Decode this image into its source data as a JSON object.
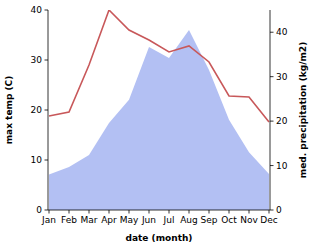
{
  "chart_data": {
    "type": "line",
    "x_label": "date (month)",
    "y_label": "max temp (C)",
    "y2_label": "med. precipitation (kg/m2)",
    "categories": [
      "Jan",
      "Feb",
      "Mar",
      "Apr",
      "May",
      "Jun",
      "Jul",
      "Aug",
      "Sep",
      "Oct",
      "Nov",
      "Dec"
    ],
    "ylim": [
      0,
      40
    ],
    "yticks": [
      0,
      10,
      20,
      30,
      40
    ],
    "y2lim": [
      0,
      45
    ],
    "y2ticks": [
      0,
      10,
      20,
      30,
      40
    ],
    "grid": false,
    "series": [
      {
        "type": "area",
        "axis": "y2",
        "color": "#b3c0f3",
        "values": [
          8,
          9.7,
          12.4,
          19.6,
          24.8,
          36.7,
          34.2,
          40.5,
          31.5,
          20.3,
          13,
          8.1
        ]
      },
      {
        "type": "line",
        "color": "#c8585a",
        "values": [
          18.8,
          19.6,
          29,
          40,
          36,
          34,
          31.6,
          32.8,
          29.6,
          22.8,
          22.6,
          17.6
        ]
      }
    ]
  }
}
